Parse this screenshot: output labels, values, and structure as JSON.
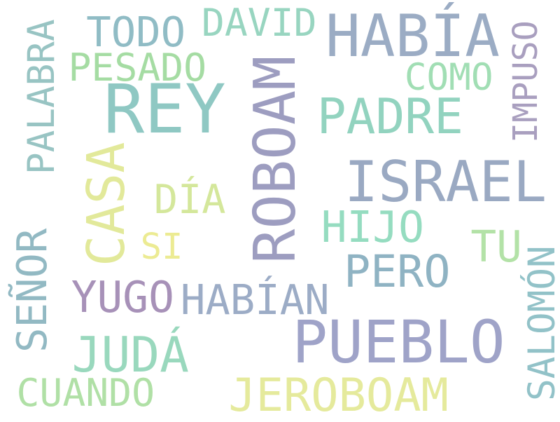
{
  "words": [
    {
      "text": "ROBOAM",
      "color": "#9d9dc0"
    },
    {
      "text": "PUEBLO",
      "color": "#9fa3c8"
    },
    {
      "text": "REY",
      "color": "#8fc8c3"
    },
    {
      "text": "ISRAEL",
      "color": "#9aa9c2"
    },
    {
      "text": "HABÍA",
      "color": "#9bacc4"
    },
    {
      "text": "CASA",
      "color": "#e2e99a"
    },
    {
      "text": "JUDÁ",
      "color": "#99d8bd"
    },
    {
      "text": "PADRE",
      "color": "#92d3bf"
    },
    {
      "text": "JEROBOAM",
      "color": "#e5ea9c"
    },
    {
      "text": "TODO",
      "color": "#90bcc5"
    },
    {
      "text": "PERO",
      "color": "#8fb3c3"
    },
    {
      "text": "HIJO",
      "color": "#95dcc0"
    },
    {
      "text": "YUGO",
      "color": "#a791b8"
    },
    {
      "text": "HABÍAN",
      "color": "#9cacc6"
    },
    {
      "text": "DAVID",
      "color": "#98d5c0"
    },
    {
      "text": "PESADO",
      "color": "#a5dca3"
    },
    {
      "text": "PALABRA",
      "color": "#98c4c3"
    },
    {
      "text": "SEÑOR",
      "color": "#92b9c3"
    },
    {
      "text": "CUANDO",
      "color": "#b0e0a6"
    },
    {
      "text": "COMO",
      "color": "#a1deb4"
    },
    {
      "text": "DÍA",
      "color": "#d4e79b"
    },
    {
      "text": "TU",
      "color": "#b3e2a7"
    },
    {
      "text": "SI",
      "color": "#eceb93"
    },
    {
      "text": "IMPUSO",
      "color": "#a99fbf"
    },
    {
      "text": "SALOMÓN",
      "color": "#92c2c8"
    }
  ]
}
